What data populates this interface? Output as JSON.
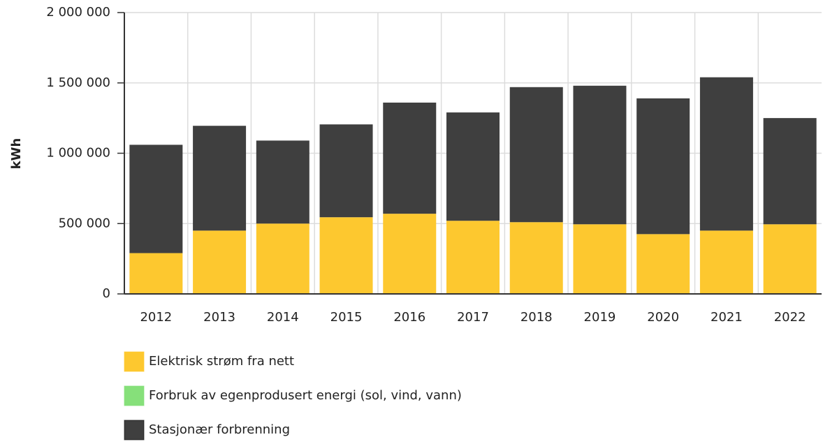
{
  "chart_data": {
    "type": "stacked-bar",
    "y_label": "kWh",
    "categories": [
      "2012",
      "2013",
      "2014",
      "2015",
      "2016",
      "2017",
      "2018",
      "2019",
      "2020",
      "2021",
      "2022"
    ],
    "series": [
      {
        "name": "Elektrisk strøm fra nett",
        "color": "#fdc82f",
        "values": [
          290000,
          450000,
          500000,
          545000,
          570000,
          520000,
          510000,
          495000,
          425000,
          450000,
          495000
        ]
      },
      {
        "name": "Forbruk av egenprodusert energi (sol, vind, vann)",
        "color": "#86e07a",
        "values": [
          0,
          0,
          0,
          0,
          0,
          0,
          0,
          0,
          0,
          0,
          0
        ]
      },
      {
        "name": "Stasjonær forbrenning",
        "color": "#3f3f3f",
        "values": [
          770000,
          745000,
          590000,
          660000,
          790000,
          770000,
          960000,
          985000,
          965000,
          1090000,
          755000
        ]
      }
    ],
    "ylim": [
      0,
      2000000
    ],
    "yticks": [
      0,
      {
        "value": 500000,
        "label": "500 000"
      },
      {
        "value": 1000000,
        "label": "1 000 000"
      },
      {
        "value": 1500000,
        "label": "1 500 000"
      },
      {
        "value": 2000000,
        "label": "2 000 000"
      }
    ],
    "grid": true
  }
}
